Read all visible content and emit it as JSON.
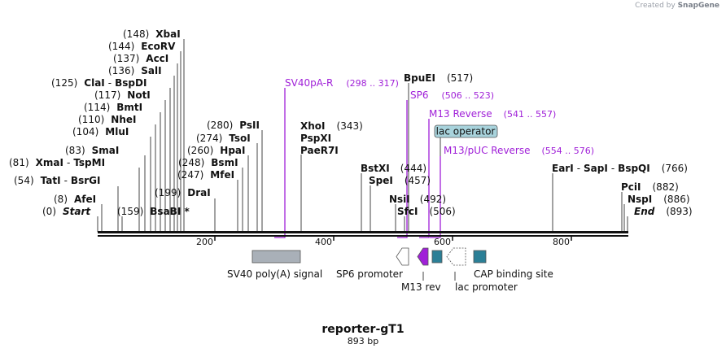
{
  "credit": {
    "prefix": "Created by",
    "brand": "SnapGene"
  },
  "map": {
    "title": "reporter-gT1",
    "length_label": "893 bp",
    "ruler": {
      "ticks": [
        "200",
        "400",
        "600",
        "800"
      ]
    },
    "sites": [
      {
        "name": "XbaI",
        "pos": "(148)"
      },
      {
        "name": "EcoRV",
        "pos": "(144)"
      },
      {
        "name": "AccI",
        "pos": "(137)"
      },
      {
        "name": "SalI",
        "pos": "(136)"
      },
      {
        "name": "ClaI",
        "pos": "(125)",
        "alt": "BspDI"
      },
      {
        "name": "NotI",
        "pos": "(117)"
      },
      {
        "name": "BmtI",
        "pos": "(114)"
      },
      {
        "name": "NheI",
        "pos": "(110)"
      },
      {
        "name": "MluI",
        "pos": "(104)"
      },
      {
        "name": "SmaI",
        "pos": "(83)"
      },
      {
        "name": "XmaI",
        "pos": "(81)",
        "alt": "TspMI"
      },
      {
        "name": "TatI",
        "pos": "(54)",
        "alt": "BsrGI"
      },
      {
        "name": "AfeI",
        "pos": "(8)"
      },
      {
        "name": "Start",
        "pos": "(0)"
      },
      {
        "name": "BsaBI *",
        "pos": "(159)"
      },
      {
        "name": "DraI",
        "pos": "(199)"
      },
      {
        "name": "PsII",
        "pos": "(280)"
      },
      {
        "name": "TsoI",
        "pos": "(274)"
      },
      {
        "name": "HpaI",
        "pos": "(260)"
      },
      {
        "name": "BsmI",
        "pos": "(248)"
      },
      {
        "name": "MfeI",
        "pos": "(247)"
      },
      {
        "name": "XhoI",
        "pos": "(343)"
      },
      {
        "name": "PspXI"
      },
      {
        "name": "PaeR7I"
      },
      {
        "name": "BpuEI",
        "pos": "(517)"
      },
      {
        "name": "BstXI",
        "pos": "(444)"
      },
      {
        "name": "SpeI",
        "pos": "(457)"
      },
      {
        "name": "NsiI",
        "pos": "(492)"
      },
      {
        "name": "SfcI",
        "pos": "(506)"
      },
      {
        "name": "EarI",
        "pos": "(766)",
        "alt": "SapI",
        "alt2": "BspQI"
      },
      {
        "name": "PciI",
        "pos": "(882)"
      },
      {
        "name": "NspI",
        "pos": "(886)"
      },
      {
        "name": "End",
        "pos": "(893)"
      }
    ],
    "primers": [
      {
        "name": "SV40pA-R",
        "range": "(298 .. 317)"
      },
      {
        "name": "SP6",
        "range": "(506 .. 523)"
      },
      {
        "name": "M13 Reverse",
        "range": "(541 .. 557)"
      },
      {
        "name": "M13/pUC Reverse",
        "range": "(554 .. 576)"
      }
    ],
    "lac_operator": "lac operator",
    "features": [
      {
        "name": "SV40 poly(A) signal"
      },
      {
        "name": "SP6 promoter"
      },
      {
        "name": "M13 rev"
      },
      {
        "name": "lac promoter"
      },
      {
        "name": "CAP binding site"
      }
    ],
    "colors": {
      "primer": "#a020d8",
      "feature_grey": "#a9b0b8",
      "feature_teal": "#2b7f96",
      "lac_operator_fill": "#a8d3dc",
      "backbone": "#111111"
    }
  }
}
